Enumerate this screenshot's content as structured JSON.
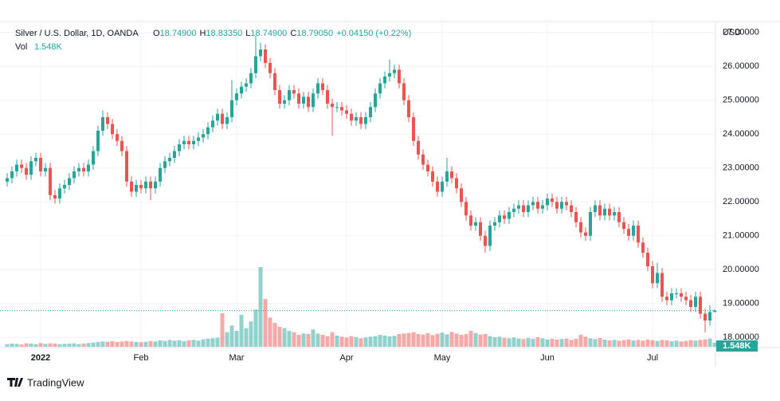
{
  "chart_data": {
    "type": "candlestick",
    "title": "Silver / U.S. Dollar, 1D, OANDA",
    "ohlc_legend": {
      "o_label": "O",
      "o_value": "18.74900",
      "h_label": "H",
      "h_value": "18.83350",
      "l_label": "L",
      "l_value": "18.74900",
      "c_label": "C",
      "c_value": "18.79050",
      "change": "+0.04150 (+0.22%)"
    },
    "volume_legend": {
      "label": "Vol",
      "value": "1.548K"
    },
    "y_axis_unit": "USD",
    "brand": "TradingView",
    "up_color": "#26a69a",
    "down_color": "#ef5350",
    "grid": true,
    "ylim": [
      17.7,
      27.3
    ],
    "yticks": [
      {
        "value": 18,
        "label": "18.00000"
      },
      {
        "value": 19,
        "label": "19.00000"
      },
      {
        "value": 20,
        "label": "20.00000"
      },
      {
        "value": 21,
        "label": "21.00000"
      },
      {
        "value": 22,
        "label": "22.00000"
      },
      {
        "value": 23,
        "label": "23.00000"
      },
      {
        "value": 24,
        "label": "24.00000"
      },
      {
        "value": 25,
        "label": "25.00000"
      },
      {
        "value": 26,
        "label": "26.00000"
      },
      {
        "value": 27,
        "label": "27.00000"
      }
    ],
    "categories": [
      null,
      null,
      null,
      null,
      null,
      null,
      null,
      "2022",
      null,
      null,
      null,
      null,
      null,
      null,
      null,
      null,
      null,
      null,
      null,
      null,
      null,
      null,
      null,
      null,
      null,
      null,
      null,
      null,
      "Feb",
      null,
      null,
      null,
      null,
      null,
      null,
      null,
      null,
      null,
      null,
      null,
      null,
      null,
      null,
      null,
      null,
      null,
      null,
      null,
      "Mar",
      null,
      null,
      null,
      null,
      null,
      null,
      null,
      null,
      null,
      null,
      null,
      null,
      null,
      null,
      null,
      null,
      null,
      null,
      null,
      null,
      null,
      null,
      "Apr",
      null,
      null,
      null,
      null,
      null,
      null,
      null,
      null,
      null,
      null,
      null,
      null,
      null,
      null,
      null,
      null,
      null,
      null,
      null,
      "May",
      null,
      null,
      null,
      null,
      null,
      null,
      null,
      null,
      null,
      null,
      null,
      null,
      null,
      null,
      null,
      null,
      null,
      null,
      null,
      null,
      null,
      "Jun",
      null,
      null,
      null,
      null,
      null,
      null,
      null,
      null,
      null,
      null,
      null,
      null,
      null,
      null,
      null,
      null,
      null,
      null,
      null,
      null,
      null,
      "Jul",
      null,
      null,
      null,
      null,
      null,
      null,
      null,
      null,
      null,
      null,
      null,
      null,
      null
    ],
    "open": [
      22.6,
      22.7,
      22.9,
      23.1,
      23.0,
      22.8,
      23.2,
      23.3,
      22.9,
      23.0,
      22.2,
      22.1,
      22.4,
      22.5,
      22.7,
      22.9,
      23.0,
      22.9,
      23.1,
      23.5,
      24.1,
      24.5,
      24.3,
      24.0,
      23.8,
      23.5,
      22.6,
      22.3,
      22.5,
      22.4,
      22.6,
      22.4,
      22.6,
      23.0,
      23.2,
      23.3,
      23.5,
      23.7,
      23.8,
      23.7,
      23.8,
      23.9,
      24.0,
      24.2,
      24.4,
      24.6,
      24.3,
      24.5,
      25.0,
      25.2,
      25.4,
      25.5,
      25.8,
      26.3,
      26.5,
      26.1,
      25.8,
      25.3,
      24.9,
      25.0,
      25.3,
      25.2,
      24.9,
      25.1,
      24.8,
      25.2,
      25.5,
      25.3,
      24.9,
      24.8,
      24.8,
      24.7,
      24.6,
      24.4,
      24.5,
      24.3,
      24.5,
      24.8,
      25.2,
      25.5,
      25.7,
      25.8,
      25.9,
      25.5,
      25.0,
      24.5,
      23.8,
      23.4,
      23.1,
      22.9,
      22.6,
      22.3,
      22.6,
      22.9,
      22.7,
      22.4,
      22.0,
      21.6,
      21.3,
      21.4,
      21.0,
      20.7,
      21.3,
      21.4,
      21.6,
      21.5,
      21.7,
      21.8,
      21.9,
      21.7,
      21.9,
      22.0,
      21.8,
      21.9,
      22.1,
      22.0,
      21.8,
      22.0,
      21.9,
      21.7,
      21.4,
      21.1,
      21.0,
      21.7,
      21.9,
      21.6,
      21.8,
      21.6,
      21.7,
      21.4,
      21.2,
      21.0,
      21.3,
      20.8,
      20.5,
      20.1,
      19.6,
      19.9,
      19.2,
      19.1,
      19.3,
      19.3,
      19.2,
      19.1,
      18.9,
      19.2,
      18.7,
      18.5,
      18.749
    ],
    "high": [
      22.85,
      23.05,
      23.25,
      23.25,
      23.15,
      23.35,
      23.45,
      23.45,
      23.15,
      23.15,
      22.35,
      22.55,
      22.65,
      22.85,
      23.05,
      23.15,
      23.15,
      23.25,
      23.65,
      24.25,
      24.7,
      24.65,
      24.45,
      24.15,
      23.95,
      23.65,
      22.75,
      22.65,
      22.65,
      22.75,
      22.75,
      22.75,
      23.15,
      23.35,
      23.45,
      23.65,
      23.85,
      23.95,
      23.95,
      23.95,
      24.05,
      24.15,
      24.35,
      24.55,
      24.75,
      24.75,
      24.65,
      25.6,
      25.35,
      25.55,
      25.65,
      25.95,
      26.9,
      26.7,
      26.65,
      26.25,
      25.95,
      25.45,
      25.15,
      25.45,
      25.45,
      25.35,
      25.25,
      25.25,
      25.35,
      25.65,
      25.65,
      25.45,
      25.05,
      24.95,
      24.95,
      24.85,
      24.75,
      24.65,
      24.65,
      24.65,
      24.95,
      25.35,
      25.65,
      25.85,
      26.2,
      26.05,
      26.05,
      25.65,
      25.15,
      24.65,
      23.95,
      23.55,
      23.25,
      23.05,
      22.75,
      22.75,
      23.3,
      23.05,
      22.85,
      22.55,
      22.15,
      21.75,
      21.55,
      21.55,
      21.15,
      21.45,
      21.55,
      21.75,
      21.75,
      21.85,
      21.95,
      22.05,
      22.05,
      22.05,
      22.15,
      22.15,
      22.05,
      22.25,
      22.25,
      22.15,
      22.15,
      22.15,
      22.05,
      21.85,
      21.55,
      21.25,
      21.85,
      22.05,
      22.05,
      21.95,
      21.95,
      21.85,
      21.85,
      21.55,
      21.35,
      21.45,
      21.45,
      20.95,
      20.65,
      20.25,
      20.2,
      20.05,
      19.35,
      19.45,
      19.45,
      19.45,
      19.35,
      19.25,
      19.35,
      19.35,
      18.85,
      18.95,
      18.8335
    ],
    "low": [
      22.45,
      22.55,
      22.75,
      22.85,
      22.65,
      22.65,
      23.05,
      22.75,
      22.75,
      22.05,
      21.95,
      21.95,
      22.25,
      22.35,
      22.55,
      22.75,
      22.75,
      22.75,
      22.95,
      23.35,
      23.95,
      24.15,
      23.85,
      23.65,
      23.35,
      22.45,
      22.15,
      22.15,
      22.25,
      22.25,
      22.05,
      22.25,
      22.45,
      22.85,
      23.05,
      23.15,
      23.35,
      23.55,
      23.55,
      23.55,
      23.65,
      23.75,
      23.85,
      24.05,
      24.25,
      24.15,
      24.15,
      24.35,
      24.85,
      25.05,
      25.25,
      25.35,
      25.65,
      26.15,
      25.95,
      25.65,
      25.15,
      24.75,
      24.75,
      24.85,
      25.05,
      24.75,
      24.75,
      24.65,
      24.65,
      25.05,
      25.15,
      24.75,
      23.95,
      24.65,
      24.55,
      24.45,
      24.25,
      24.25,
      24.15,
      24.15,
      24.35,
      24.65,
      25.05,
      25.35,
      25.55,
      25.65,
      25.35,
      24.85,
      24.35,
      23.65,
      23.25,
      22.95,
      22.75,
      22.45,
      22.15,
      22.15,
      22.45,
      22.55,
      22.25,
      21.85,
      21.45,
      21.15,
      21.15,
      20.85,
      20.5,
      20.55,
      21.15,
      21.25,
      21.35,
      21.35,
      21.55,
      21.65,
      21.55,
      21.55,
      21.75,
      21.65,
      21.65,
      21.75,
      21.85,
      21.65,
      21.65,
      21.75,
      21.55,
      21.25,
      20.95,
      20.85,
      20.85,
      21.55,
      21.45,
      21.45,
      21.45,
      21.45,
      21.25,
      21.05,
      20.85,
      20.85,
      20.65,
      20.35,
      19.95,
      19.45,
      19.45,
      19.05,
      18.95,
      18.95,
      19.15,
      19.05,
      18.95,
      18.75,
      18.75,
      18.55,
      18.15,
      18.35,
      18.749
    ],
    "close": [
      22.7,
      22.9,
      23.1,
      23.0,
      22.8,
      23.2,
      23.3,
      22.9,
      23.0,
      22.2,
      22.1,
      22.4,
      22.5,
      22.7,
      22.9,
      23.0,
      22.9,
      23.1,
      23.5,
      24.1,
      24.5,
      24.3,
      24.0,
      23.8,
      23.5,
      22.6,
      22.3,
      22.5,
      22.4,
      22.6,
      22.4,
      22.6,
      23.0,
      23.2,
      23.3,
      23.5,
      23.7,
      23.8,
      23.7,
      23.8,
      23.9,
      24.0,
      24.2,
      24.4,
      24.6,
      24.3,
      24.5,
      25.0,
      25.2,
      25.4,
      25.5,
      25.8,
      26.3,
      26.5,
      26.1,
      25.8,
      25.3,
      24.9,
      25.0,
      25.3,
      25.2,
      24.9,
      25.1,
      24.8,
      25.2,
      25.5,
      25.3,
      24.9,
      24.8,
      24.8,
      24.7,
      24.6,
      24.4,
      24.5,
      24.3,
      24.5,
      24.8,
      25.2,
      25.5,
      25.7,
      25.8,
      25.9,
      25.5,
      25.0,
      24.5,
      23.8,
      23.4,
      23.1,
      22.9,
      22.6,
      22.3,
      22.6,
      22.9,
      22.7,
      22.4,
      22.0,
      21.6,
      21.3,
      21.4,
      21.0,
      20.7,
      21.3,
      21.4,
      21.6,
      21.5,
      21.7,
      21.8,
      21.9,
      21.7,
      21.9,
      22.0,
      21.8,
      21.9,
      22.1,
      22.0,
      21.8,
      22.0,
      21.9,
      21.7,
      21.4,
      21.1,
      21.0,
      21.7,
      21.9,
      21.6,
      21.8,
      21.6,
      21.7,
      21.4,
      21.2,
      21.0,
      21.3,
      20.8,
      20.5,
      20.1,
      19.6,
      19.9,
      19.2,
      19.1,
      19.3,
      19.3,
      19.2,
      19.1,
      18.9,
      19.2,
      18.7,
      18.5,
      18.749,
      18.7905
    ],
    "volume": [
      1.0,
      1.2,
      1.1,
      0.9,
      1.3,
      1.2,
      1.0,
      1.4,
      1.1,
      1.3,
      1.2,
      1.0,
      1.1,
      1.2,
      1.3,
      1.0,
      1.2,
      1.4,
      1.6,
      1.8,
      2.0,
      1.9,
      2.1,
      1.8,
      2.0,
      2.2,
      2.0,
      1.8,
      1.7,
      1.9,
      2.1,
      2.0,
      2.4,
      2.2,
      2.6,
      2.3,
      2.5,
      2.1,
      2.4,
      2.6,
      2.3,
      2.8,
      3.0,
      3.2,
      3.4,
      12.6,
      5.5,
      8.0,
      6.0,
      12.0,
      7.0,
      9.5,
      14.0,
      30.0,
      18.0,
      11.0,
      9.0,
      7.5,
      7.0,
      6.0,
      5.5,
      4.5,
      5.0,
      4.8,
      6.5,
      5.0,
      4.5,
      4.0,
      5.5,
      4.2,
      3.8,
      3.5,
      4.0,
      3.6,
      3.2,
      3.5,
      3.8,
      4.0,
      4.5,
      4.2,
      3.9,
      4.1,
      4.8,
      5.0,
      5.2,
      5.5,
      4.8,
      4.6,
      5.1,
      4.4,
      4.9,
      5.3,
      4.7,
      5.6,
      5.0,
      4.5,
      4.8,
      6.0,
      5.2,
      4.6,
      4.8,
      4.0,
      3.6,
      3.8,
      3.4,
      3.2,
      3.5,
      3.1,
      2.9,
      3.3,
      3.0,
      3.6,
      3.2,
      2.8,
      3.0,
      2.7,
      2.9,
      3.1,
      2.6,
      3.0,
      4.5,
      3.8,
      3.2,
      2.9,
      3.3,
      2.7,
      2.4,
      2.6,
      2.3,
      2.5,
      2.8,
      2.4,
      2.6,
      2.3,
      2.7,
      2.5,
      2.2,
      2.6,
      2.4,
      2.1,
      2.3,
      2.0,
      2.2,
      2.5,
      2.3,
      2.6,
      2.8,
      3.1,
      1.548
    ]
  }
}
